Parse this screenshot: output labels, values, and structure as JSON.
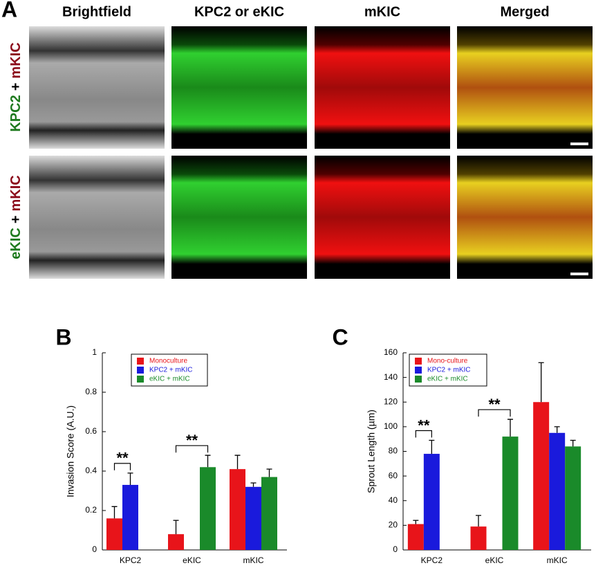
{
  "panel_a": {
    "label": "A",
    "columns": [
      "Brightfield",
      "KPC2 or eKIC",
      "mKIC",
      "Merged"
    ],
    "rows": [
      [
        "KPC2",
        "+",
        "mKIC"
      ],
      [
        "eKIC",
        "+",
        "mKIC"
      ]
    ]
  },
  "chart_data": [
    {
      "type": "bar",
      "panel": "B",
      "ylabel": "Invasion Score (A.U.)",
      "categories": [
        "KPC2",
        "eKIC",
        "mKIC"
      ],
      "series": [
        {
          "name": "Monoculture",
          "color": "#e8141a",
          "values": [
            0.16,
            0.08,
            0.41
          ],
          "errors": [
            0.06,
            0.07,
            0.07
          ]
        },
        {
          "name": "KPC2 + mKIC",
          "color": "#1a1adc",
          "values": [
            0.33,
            null,
            0.32
          ],
          "errors": [
            0.06,
            null,
            0.02
          ]
        },
        {
          "name": "eKIC + mKIC",
          "color": "#1a8a2a",
          "values": [
            null,
            0.42,
            0.37
          ],
          "errors": [
            null,
            0.06,
            0.04
          ]
        }
      ],
      "ylim": [
        0,
        1
      ],
      "yticks": [
        0,
        0.2,
        0.4,
        0.6,
        0.8,
        1
      ],
      "annotations": [
        {
          "text": "**",
          "category": 0,
          "from": 0,
          "to": 1
        },
        {
          "text": "**",
          "category": 1,
          "from": 0,
          "to": 2
        }
      ]
    },
    {
      "type": "bar",
      "panel": "C",
      "ylabel": "Sprout Length (µm)",
      "categories": [
        "KPC2",
        "eKIC",
        "mKIC"
      ],
      "series": [
        {
          "name": "Mono-culture",
          "color": "#e8141a",
          "values": [
            21,
            19,
            120
          ],
          "errors": [
            3,
            9,
            32
          ]
        },
        {
          "name": "KPC2 + mKIC",
          "color": "#1a1adc",
          "values": [
            78,
            null,
            95
          ],
          "errors": [
            11,
            null,
            5
          ]
        },
        {
          "name": "eKIC + mKIC",
          "color": "#1a8a2a",
          "values": [
            null,
            92,
            84
          ],
          "errors": [
            null,
            14,
            5
          ]
        }
      ],
      "ylim": [
        0,
        160
      ],
      "yticks": [
        0,
        20,
        40,
        60,
        80,
        100,
        120,
        140,
        160
      ],
      "annotations": [
        {
          "text": "**",
          "category": 0,
          "from": 0,
          "to": 1
        },
        {
          "text": "**",
          "category": 1,
          "from": 0,
          "to": 2
        }
      ]
    }
  ]
}
